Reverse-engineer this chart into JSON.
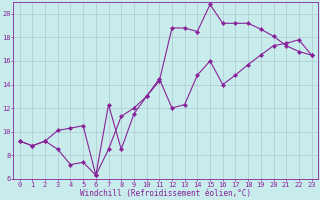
{
  "xlabel": "Windchill (Refroidissement éolien,°C)",
  "bg_color": "#c8ecec",
  "grid_color": "#b0c8d0",
  "line_color": "#882299",
  "xlim": [
    -0.5,
    23.5
  ],
  "ylim": [
    6,
    21
  ],
  "yticks": [
    6,
    8,
    10,
    12,
    14,
    16,
    18,
    20
  ],
  "xticks": [
    0,
    1,
    2,
    3,
    4,
    5,
    6,
    7,
    8,
    9,
    10,
    11,
    12,
    13,
    14,
    15,
    16,
    17,
    18,
    19,
    20,
    21,
    22,
    23
  ],
  "series1_x": [
    0,
    1,
    2,
    3,
    4,
    5,
    6,
    7,
    8,
    9,
    10,
    11,
    12,
    13,
    14,
    15,
    16,
    17,
    18,
    19,
    20,
    21,
    22,
    23
  ],
  "series1_y": [
    9.2,
    8.8,
    9.2,
    8.5,
    7.2,
    7.4,
    6.3,
    8.5,
    11.3,
    12.0,
    13.0,
    14.3,
    18.8,
    18.8,
    18.5,
    20.8,
    19.2,
    19.2,
    19.2,
    18.7,
    18.1,
    17.3,
    16.8,
    16.5
  ],
  "series2_x": [
    0,
    1,
    2,
    3,
    4,
    5,
    6,
    7,
    8,
    9,
    10,
    11,
    12,
    13,
    14,
    15,
    16,
    17,
    18,
    19,
    20,
    21,
    22,
    23
  ],
  "series2_y": [
    9.2,
    8.8,
    9.2,
    10.1,
    10.3,
    10.5,
    6.3,
    12.3,
    8.5,
    11.5,
    13.0,
    14.5,
    12.0,
    12.3,
    14.8,
    16.0,
    14.0,
    14.8,
    15.7,
    16.5,
    17.3,
    17.5,
    17.8,
    16.5
  ],
  "marker": "D",
  "markersize": 2.2,
  "linewidth": 0.8,
  "tick_fontsize": 5.0,
  "xlabel_fontsize": 5.5
}
